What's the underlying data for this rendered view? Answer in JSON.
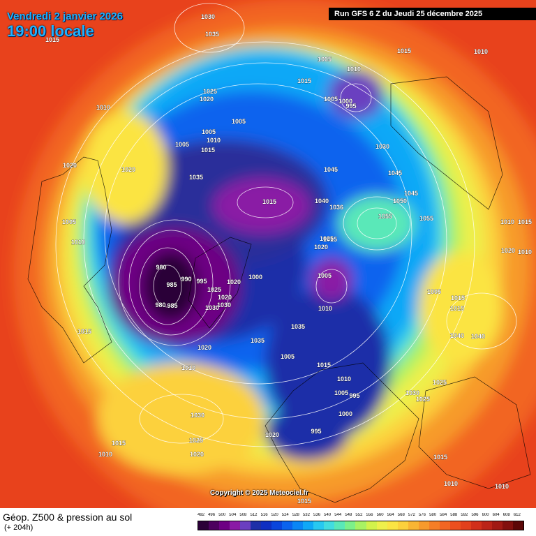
{
  "header": {
    "date": "Vendredi 2 janvier 2026",
    "time": "19:00 locale",
    "run": "Run GFS 6 Z du Jeudi 25 décembre 2025"
  },
  "footer": {
    "title": "Géop. Z500 & pression au sol",
    "subtitle": "(+ 204h)",
    "copyright": "Copyright © 2025 Meteociel.fr"
  },
  "legend": {
    "values": [
      "492",
      "496",
      "500",
      "504",
      "508",
      "512",
      "516",
      "520",
      "524",
      "528",
      "532",
      "536",
      "540",
      "544",
      "548",
      "552",
      "556",
      "560",
      "564",
      "568",
      "572",
      "576",
      "580",
      "584",
      "588",
      "592",
      "596",
      "600",
      "604",
      "608",
      "612"
    ],
    "colors": [
      "#2b0038",
      "#4d005f",
      "#6d0083",
      "#8a1aa5",
      "#6a3fc0",
      "#1e2fa8",
      "#0f2fc2",
      "#0a45dc",
      "#0b63ee",
      "#0a86f5",
      "#0fa8f7",
      "#27c8f1",
      "#42dce0",
      "#5ae8b8",
      "#7cf08a",
      "#a8f263",
      "#d2f24b",
      "#eef04b",
      "#fbe443",
      "#fcd13c",
      "#f9b533",
      "#f79a2c",
      "#f57e27",
      "#f26522",
      "#ec4f1e",
      "#e2401c",
      "#d1301a",
      "#bb2418",
      "#a11a14",
      "#82100e",
      "#5c0707"
    ]
  },
  "map_labels": [
    "1030",
    "1035",
    "1015",
    "1015",
    "1010",
    "1005",
    "1010",
    "1015",
    "1025",
    "1020",
    "1010",
    "995",
    "1000",
    "1005",
    "1005",
    "1005",
    "1010",
    "1015",
    "1005",
    "1020",
    "1030",
    "1020",
    "1035",
    "1045",
    "1045",
    "1015",
    "1040",
    "1036",
    "1050",
    "1045",
    "1005",
    "1055",
    "1055",
    "1010",
    "1015",
    "1020",
    "1010",
    "1015",
    "1020",
    "1010",
    "1025",
    "980",
    "985",
    "990",
    "995",
    "1020",
    "1000",
    "980",
    "985",
    "1030",
    "1020",
    "1030",
    "1025",
    "1005",
    "1010",
    "1005",
    "1035",
    "1015",
    "1015",
    "1040",
    "1040",
    "1035",
    "1005",
    "1020",
    "1015",
    "1025",
    "1010",
    "1010",
    "1005",
    "995",
    "1000",
    "1030",
    "1025",
    "1015",
    "1030",
    "1025",
    "1010",
    "1015",
    "1020",
    "1020",
    "995",
    "1015",
    "1010",
    "1010",
    "1015"
  ]
}
